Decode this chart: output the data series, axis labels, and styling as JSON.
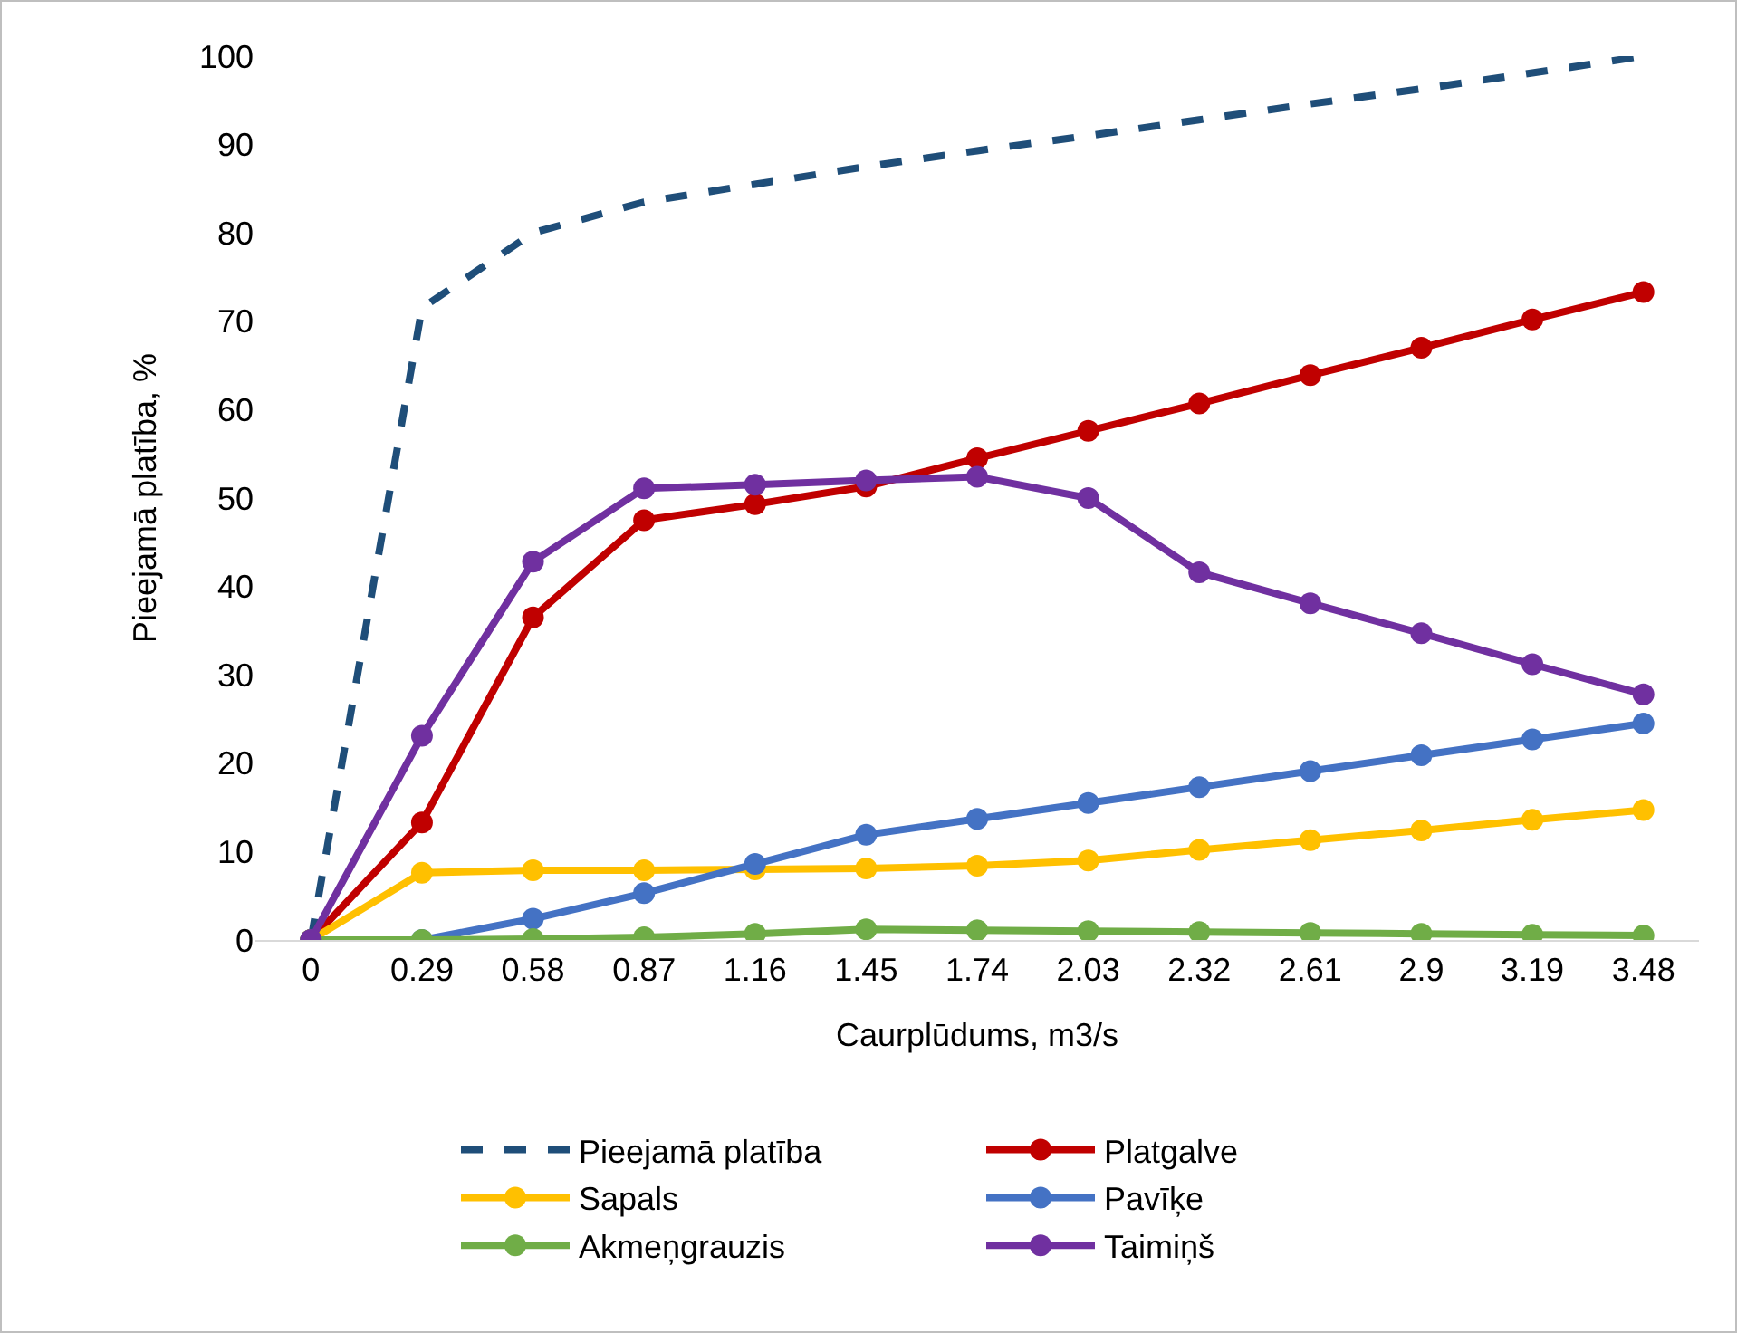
{
  "chart_data": {
    "type": "line",
    "xlabel": "Caurplūdums, m3/s",
    "ylabel": "Pieejamā platība, %",
    "categories": [
      "0",
      "0.29",
      "0.58",
      "0.87",
      "1.16",
      "1.45",
      "1.74",
      "2.03",
      "2.32",
      "2.61",
      "2.9",
      "3.19",
      "3.48"
    ],
    "ylim": [
      0,
      100
    ],
    "yticks": [
      0,
      10,
      20,
      30,
      40,
      50,
      60,
      70,
      80,
      90,
      100
    ],
    "grid": false,
    "legend": "bottom",
    "marker": "circle",
    "line_style": "solid",
    "series": [
      {
        "name": "Pieejamā platība",
        "color": "#1f4e79",
        "marker": "none",
        "line_style": "dashed",
        "values": [
          0,
          71.5,
          80,
          83.5,
          85.5,
          87.5,
          89.3,
          91,
          92.8,
          94.6,
          96.3,
          98.1,
          100
        ]
      },
      {
        "name": "Platgalve",
        "color": "#c00000",
        "values": [
          0,
          13.3,
          36.5,
          47.5,
          49.3,
          51.3,
          54.5,
          57.6,
          60.7,
          63.9,
          67,
          70.2,
          73.3
        ]
      },
      {
        "name": "Sapals",
        "color": "#ffc000",
        "values": [
          0,
          7.6,
          7.9,
          7.9,
          8,
          8.1,
          8.4,
          9,
          10.2,
          11.3,
          12.4,
          13.6,
          14.7
        ]
      },
      {
        "name": "Pavīķe",
        "color": "#4472c4",
        "values": [
          0,
          0,
          2.4,
          5.3,
          8.6,
          11.9,
          13.7,
          15.5,
          17.3,
          19.1,
          20.9,
          22.7,
          24.5
        ]
      },
      {
        "name": "Akmeņgrauzis",
        "color": "#70ad47",
        "values": [
          0,
          0,
          0.1,
          0.3,
          0.7,
          1.2,
          1.1,
          1,
          0.9,
          0.8,
          0.7,
          0.6,
          0.5
        ]
      },
      {
        "name": "Taimiņš",
        "color": "#7030a0",
        "values": [
          0,
          23.1,
          42.8,
          51.1,
          51.5,
          52,
          52.4,
          50,
          41.6,
          38.1,
          34.7,
          31.2,
          27.8
        ]
      }
    ]
  }
}
